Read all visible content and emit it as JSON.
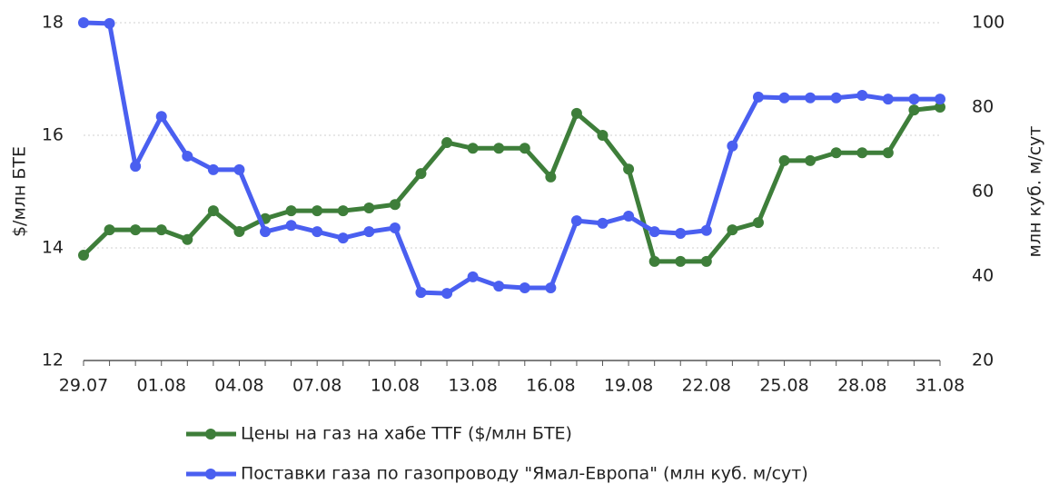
{
  "chart_data": {
    "type": "line",
    "categories": [
      "29.07",
      null,
      null,
      "01.08",
      null,
      null,
      "04.08",
      null,
      null,
      "07.08",
      null,
      null,
      "10.08",
      null,
      null,
      "13.08",
      null,
      null,
      "16.08",
      null,
      null,
      "19.08",
      null,
      null,
      "22.08",
      null,
      null,
      "25.08",
      null,
      null,
      "28.08",
      null,
      null,
      "31.08"
    ],
    "y_label": "$/млн БТЕ",
    "y2_label": "млн куб. м/сут",
    "ylim": [
      12,
      18
    ],
    "yticks": [
      12,
      14,
      16,
      18
    ],
    "y2lim": [
      20,
      100
    ],
    "y2ticks": [
      20,
      40,
      60,
      80,
      100
    ],
    "grid": true,
    "legend": "bottom",
    "series": [
      {
        "name": "Цены на газ на хабе TTF ($/млн БТЕ)",
        "color": "#3e7e3a",
        "values": [
          13.87,
          14.32,
          14.32,
          14.32,
          14.15,
          14.66,
          14.29,
          14.52,
          14.66,
          14.66,
          14.66,
          14.71,
          14.77,
          15.32,
          15.87,
          15.77,
          15.77,
          15.77,
          15.26,
          16.39,
          16.0,
          15.4,
          13.76,
          13.76,
          13.76,
          14.32,
          14.45,
          15.55,
          15.55,
          15.69,
          15.69,
          15.69,
          16.45,
          16.5
        ]
      },
      {
        "name": "Поставки газа по газопроводу \"Ямал-Европа\" (млн куб. м/сут)",
        "color": "#4a5ff0",
        "axis": "y2",
        "values": [
          100,
          99.8,
          66.0,
          77.8,
          68.4,
          65.2,
          65.2,
          50.5,
          52.0,
          50.5,
          49.0,
          50.5,
          51.4,
          36.1,
          35.9,
          39.8,
          37.6,
          37.2,
          37.2,
          53.1,
          52.5,
          54.2,
          50.5,
          50.1,
          50.8,
          70.8,
          82.4,
          82.2,
          82.2,
          82.2,
          82.8,
          81.9,
          81.9,
          81.9
        ]
      }
    ]
  }
}
